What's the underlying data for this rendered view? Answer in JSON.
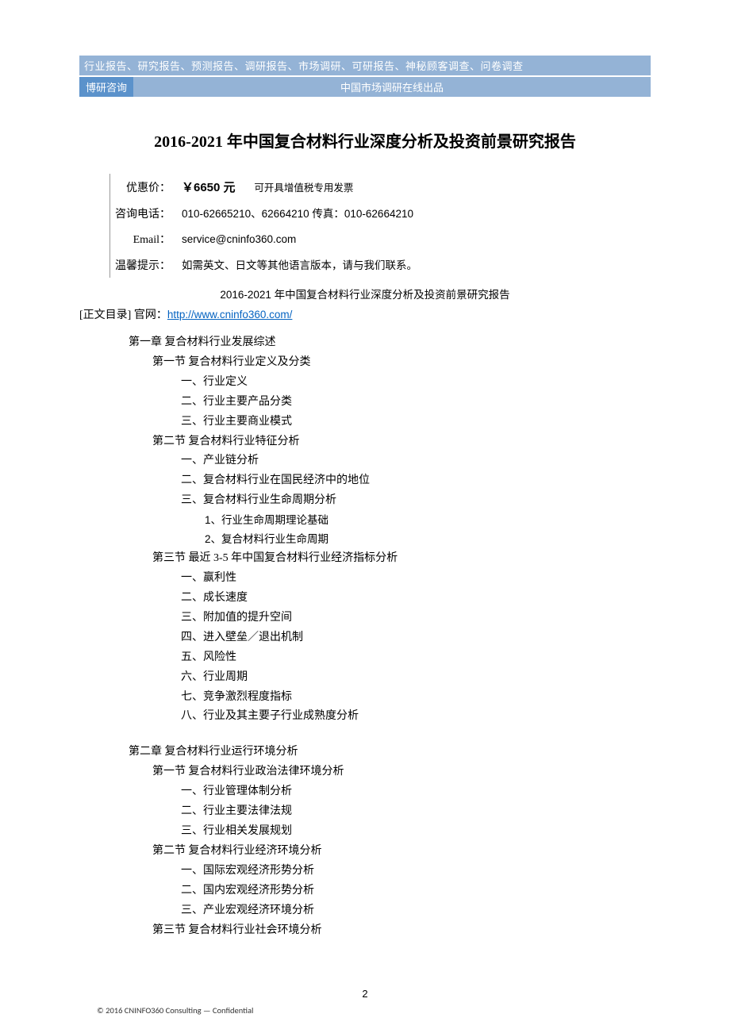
{
  "header": {
    "bar1": "行业报告、研究报告、预测报告、调研报告、市场调研、可研报告、神秘顾客调查、问卷调查",
    "bar2_left": "博研咨询",
    "bar2_right": "中国市场调研在线出品"
  },
  "title": "2016-2021 年中国复合材料行业深度分析及投资前景研究报告",
  "info": {
    "price_label": "优惠价：",
    "price_value": "￥6650 元",
    "invoice_note": "可开具增值税专用发票",
    "phone_label": "咨询电话：",
    "phone_value": "010-62665210、62664210   传真：010-62664210",
    "email_label": "Email：",
    "email_value": "service@cninfo360.com",
    "tip_label": "温馨提示：",
    "tip_value": "如需英文、日文等其他语言版本，请与我们联系。"
  },
  "subtitle": "2016-2021 年中国复合材料行业深度分析及投资前景研究报告",
  "toc_header": {
    "prefix": "[正文目录] 官网：",
    "url": "http://www.cninfo360.com/"
  },
  "toc": {
    "ch1": "第一章   复合材料行业发展综述",
    "ch1_s1": "第一节    复合材料行业定义及分类",
    "ch1_s1_1": "一、行业定义",
    "ch1_s1_2": "二、行业主要产品分类",
    "ch1_s1_3": "三、行业主要商业模式",
    "ch1_s2": "第二节    复合材料行业特征分析",
    "ch1_s2_1": "一、产业链分析",
    "ch1_s2_2": "二、复合材料行业在国民经济中的地位",
    "ch1_s2_3": "三、复合材料行业生命周期分析",
    "ch1_s2_3_1": "1、行业生命周期理论基础",
    "ch1_s2_3_2": "2、复合材料行业生命周期",
    "ch1_s3": "第三节    最近 3-5 年中国复合材料行业经济指标分析",
    "ch1_s3_1": "一、赢利性",
    "ch1_s3_2": "二、成长速度",
    "ch1_s3_3": "三、附加值的提升空间",
    "ch1_s3_4": "四、进入壁垒／退出机制",
    "ch1_s3_5": "五、风险性",
    "ch1_s3_6": "六、行业周期",
    "ch1_s3_7": "七、竞争激烈程度指标",
    "ch1_s3_8": "八、行业及其主要子行业成熟度分析",
    "ch2": "第二章  复合材料行业运行环境分析",
    "ch2_s1": "第一节    复合材料行业政治法律环境分析",
    "ch2_s1_1": "一、行业管理体制分析",
    "ch2_s1_2": "二、行业主要法律法规",
    "ch2_s1_3": "三、行业相关发展规划",
    "ch2_s2": "第二节    复合材料行业经济环境分析",
    "ch2_s2_1": "一、国际宏观经济形势分析",
    "ch2_s2_2": "二、国内宏观经济形势分析",
    "ch2_s2_3": "三、产业宏观经济环境分析",
    "ch2_s3": "第三节    复合材料行业社会环境分析"
  },
  "footer": {
    "page_num": "2",
    "note": "© 2016 CNINFO360 Consulting — Confidential"
  },
  "colors": {
    "header_light": "#94b3d6",
    "header_dark": "#5b92cb",
    "link": "#0563c1",
    "text": "#000000",
    "bg": "#ffffff"
  }
}
